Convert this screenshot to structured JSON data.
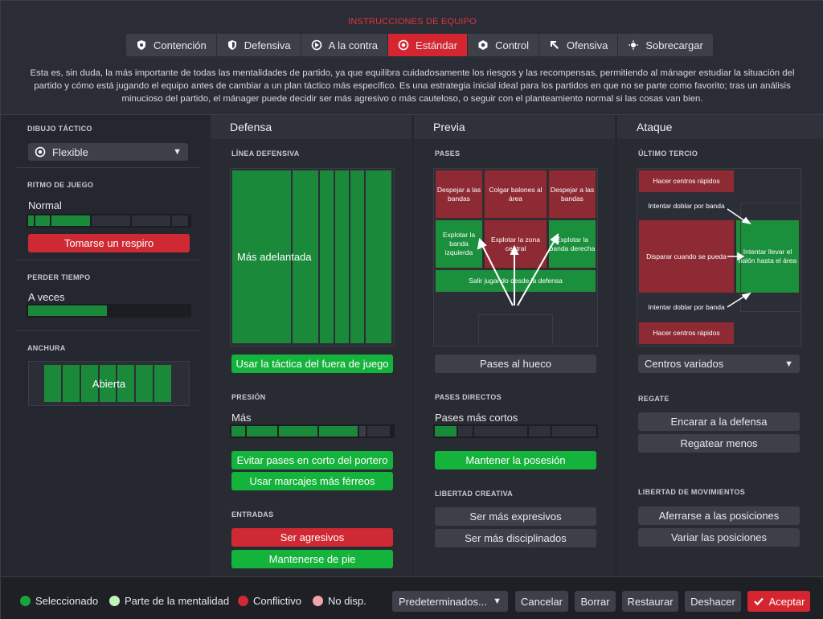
{
  "header": {
    "title": "INSTRUCCIONES DE EQUIPO",
    "tabs": [
      {
        "label": "Contención",
        "icon": "shield-heart-icon"
      },
      {
        "label": "Defensiva",
        "icon": "shield-icon"
      },
      {
        "label": "A la contra",
        "icon": "counter-attack-icon"
      },
      {
        "label": "Estándar",
        "icon": "balanced-icon",
        "selected": true
      },
      {
        "label": "Control",
        "icon": "control-icon"
      },
      {
        "label": "Ofensiva",
        "icon": "attack-arrow-icon"
      },
      {
        "label": "Sobrecargar",
        "icon": "overload-icon"
      }
    ],
    "description": "Esta es, sin duda, la más importante de todas las mentalidades de partido, ya que equilibra cuidadosamente los riesgos y las recompensas, permitiendo al mánager estudiar la situación del partido y cómo está jugando el equipo antes de cambiar a un plan táctico más específico. Es una estrategia inicial ideal para los partidos en que no se parte como favorito; tras un análisis minucioso del partido, el mánager puede decidir ser más agresivo o más cauteloso, o seguir con el planteamiento normal si las cosas van bien."
  },
  "left": {
    "formation_label": "DIBUJO TÁCTICO",
    "formation_value": "Flexible",
    "tempo_label": "RITMO DE JUEGO",
    "tempo_value": "Normal",
    "tempo_level": 0.4,
    "tempo_button": "Tomarse un respiro",
    "timewasting_label": "PERDER TIEMPO",
    "timewasting_value": "A veces",
    "timewasting_level": 0.5,
    "width_label": "ANCHURA",
    "width_value": "Abierta"
  },
  "defensa": {
    "heading": "Defensa",
    "line_label": "LÍNEA DEFENSIVA",
    "line_value": "Más adelantada",
    "offside_button": "Usar la táctica del fuera de juego",
    "press_label": "PRESIÓN",
    "press_value": "Más",
    "press_level": 0.8,
    "press_buttons": [
      "Evitar pases en corto del portero",
      "Usar marcajes más férreos"
    ],
    "tackle_label": "ENTRADAS",
    "tackle_buttons": [
      "Ser agresivos",
      "Mantenerse de pie"
    ]
  },
  "previa": {
    "heading": "Previa",
    "passes_label": "PASES",
    "cells": {
      "lbands": "Despejar a las bandas",
      "colgar": "Colgar balones al área",
      "rbands": "Despejar a las bandas",
      "left_flank": "Explotar la banda izquierda",
      "center": "Explotar la zona central",
      "right_flank": "Explotar la banda derecha",
      "build": "Salir jugando desde la defensa"
    },
    "through_button": "Pases al hueco",
    "direct_label": "PASES DIRECTOS",
    "direct_value": "Pases más cortos",
    "direct_level": 0.2,
    "possession_button": "Mantener la posesión",
    "creative_label": "LIBERTAD CREATIVA",
    "creative_buttons": [
      "Ser más expresivos",
      "Ser más disciplinados"
    ]
  },
  "ataque": {
    "heading": "Ataque",
    "final_third_label": "ÚLTIMO TERCIO",
    "cells": {
      "cross_top": "Hacer centros rápidos",
      "overlap_top": "Intentar doblar por banda",
      "shoot": "Disparar cuando se pueda",
      "work_in": "Intentar llevar el balón hasta el área",
      "overlap_bottom": "Intentar doblar por banda",
      "cross_bottom": "Hacer centros rápidos"
    },
    "crossing_value": "Centros variados",
    "dribble_label": "REGATE",
    "dribble_buttons": [
      "Encarar a la defensa",
      "Regatear menos"
    ],
    "movement_label": "LIBERTAD DE MOVIMIENTOS",
    "movement_buttons": [
      "Aferrarse a las posiciones",
      "Variar las posiciones"
    ]
  },
  "footer": {
    "legend": [
      {
        "label": "Seleccionado",
        "color": "#1aa33c"
      },
      {
        "label": "Parte de la mentalidad",
        "color": "#bff5b8"
      },
      {
        "label": "Conflictivo",
        "color": "#cf2a33"
      },
      {
        "label": "No disp.",
        "color": "#f1a5a8"
      }
    ],
    "presets": "Predeterminados...",
    "cancel": "Cancelar",
    "clear": "Borrar",
    "reset": "Restaurar",
    "undo": "Deshacer",
    "accept": "Aceptar"
  },
  "colors": {
    "accent": "#d42630",
    "green": "#14b33c",
    "red": "#cf2a33"
  }
}
